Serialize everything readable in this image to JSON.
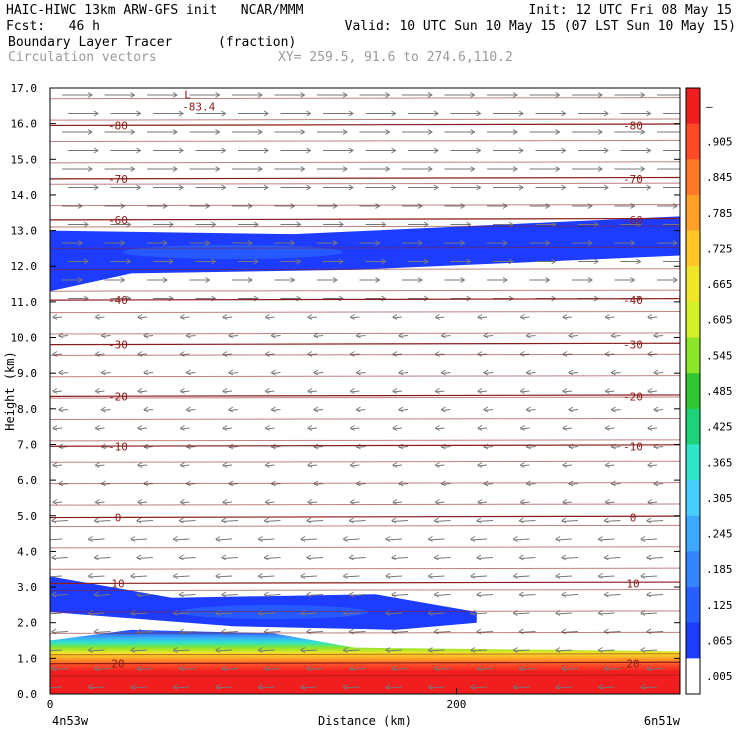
{
  "header": {
    "line1_left": "HAIC-HIWC 13km ARW-GFS init   NCAR/MMM",
    "line1_right": "Init: 12 UTC Fri 08 May 15",
    "fcst": "Fcst:   46 h",
    "valid": "Valid: 10 UTC Sun 10 May 15 (07 LST Sun 10 May 15)",
    "field_name": "Boundary Layer Tracer",
    "field_units": "(fraction)",
    "vectors_label": "Circulation vectors",
    "xy_label": "XY= 259.5, 91.6 to 274.6,110.2"
  },
  "chart_data": {
    "type": "heatmap",
    "xlabel": "Distance (km)",
    "ylabel": "Height (km)",
    "xlim": [
      0,
      310
    ],
    "ylim": [
      0,
      17
    ],
    "x_ticks": [
      {
        "value": 0,
        "label": "0"
      },
      {
        "value": 200,
        "label": "200"
      }
    ],
    "y_ticks": [
      "0.0",
      "1.0",
      "2.0",
      "3.0",
      "4.0",
      "5.0",
      "6.0",
      "7.0",
      "8.0",
      "9.0",
      "10.0",
      "11.0",
      "12.0",
      "13.0",
      "14.0",
      "15.0",
      "16.0",
      "17.0"
    ],
    "x_end_labels": [
      "4n53w",
      "6n51w"
    ],
    "colorbar": {
      "labels": [
        ".005",
        ".065",
        ".125",
        ".185",
        ".245",
        ".305",
        ".365",
        ".425",
        ".485",
        ".545",
        ".605",
        ".665",
        ".725",
        ".785",
        ".845",
        ".905"
      ],
      "colors": [
        "#ffffff",
        "#1e3cff",
        "#2860ff",
        "#3284ff",
        "#3ca8ff",
        "#46cfff",
        "#2ee6c8",
        "#1ed27a",
        "#32c832",
        "#8ce628",
        "#d2f028",
        "#f0e628",
        "#ffc828",
        "#ffa028",
        "#ff7828",
        "#ff4a28",
        "#f01e1e"
      ]
    },
    "isotherms": [
      {
        "value": -80,
        "height": 15.95,
        "labels": [
          "-80",
          "-80"
        ]
      },
      {
        "value": -70,
        "height": 14.45,
        "labels": [
          "-70",
          "-70"
        ]
      },
      {
        "value": -60,
        "height": 13.3,
        "labels": [
          "-60",
          "-60"
        ]
      },
      {
        "value": -40,
        "height": 11.05,
        "labels": [
          "-40",
          "-40"
        ]
      },
      {
        "value": -30,
        "height": 9.8,
        "labels": [
          "-30",
          "-30"
        ]
      },
      {
        "value": -20,
        "height": 8.35,
        "labels": [
          "-20",
          "-20"
        ]
      },
      {
        "value": -10,
        "height": 6.95,
        "labels": [
          "-10",
          "-10"
        ]
      },
      {
        "value": 0,
        "height": 4.95,
        "labels": [
          "0",
          "0"
        ]
      },
      {
        "value": 10,
        "height": 3.1,
        "labels": [
          "10",
          "10"
        ]
      },
      {
        "value": 20,
        "height": 0.85,
        "labels": [
          "20",
          "20"
        ]
      }
    ],
    "min_label": {
      "mark": "L",
      "value": "-83.4",
      "x": 68,
      "y": 16.7
    },
    "tracer_regions": [
      {
        "name": "upper-plume",
        "level": 0.065,
        "top": [
          [
            0,
            13.0
          ],
          [
            120,
            12.9
          ],
          [
            310,
            13.4
          ]
        ],
        "bottom": [
          [
            0,
            11.3
          ],
          [
            40,
            11.8
          ],
          [
            150,
            11.9
          ],
          [
            310,
            12.3
          ]
        ]
      },
      {
        "name": "mid-plume",
        "level": 0.065,
        "top": [
          [
            0,
            3.3
          ],
          [
            60,
            2.7
          ],
          [
            160,
            2.8
          ],
          [
            210,
            2.3
          ]
        ],
        "bottom": [
          [
            0,
            2.3
          ],
          [
            90,
            1.9
          ],
          [
            170,
            1.8
          ],
          [
            210,
            2.0
          ]
        ]
      },
      {
        "name": "boundary-layer",
        "level": 0.9,
        "top": [
          [
            0,
            1.5
          ],
          [
            40,
            1.8
          ],
          [
            110,
            1.7
          ],
          [
            150,
            1.3
          ],
          [
            310,
            1.2
          ]
        ],
        "bottom": [
          [
            0,
            0.0
          ],
          [
            310,
            0.0
          ]
        ]
      }
    ]
  }
}
